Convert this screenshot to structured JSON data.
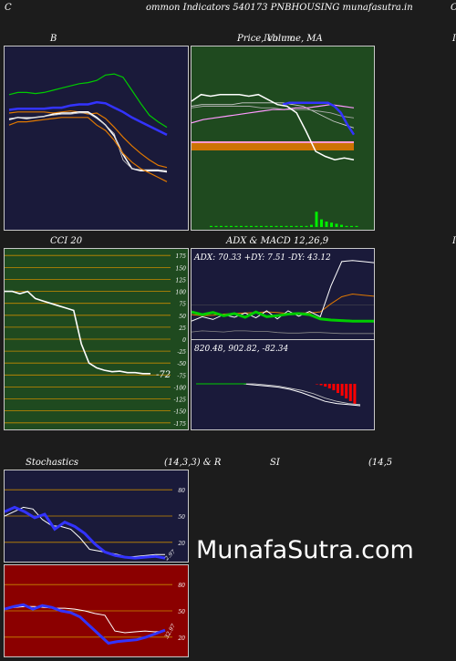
{
  "header": {
    "left": "C",
    "title": "ommon  Indicators 540173 PNBHOUSING munafasutra.in",
    "right": "C"
  },
  "labels": {
    "bb": "B",
    "price": "Price,  Volume,  MA",
    "price_overlay": "Ichimo",
    "right_edge_1": "I",
    "cci": "CCI 20",
    "adx_macd": "ADX  & MACD 12,26,9",
    "right_edge_2": "I",
    "stoch_left": "Stochastics",
    "stoch_params": "(14,3,3) & R",
    "rsi": "SI",
    "rsi_params": "(14,5"
  },
  "watermark": "MunafaSutra.com",
  "colors": {
    "navy": "#1a1a3a",
    "green_bg": "#1f4a1f",
    "red_bg": "#8b0000",
    "orange": "#e07800",
    "blue": "#3333ff",
    "white": "#ffffff",
    "lime": "#00cc00"
  },
  "chart_data": [
    {
      "type": "line",
      "title": "B",
      "series": [
        {
          "values": [
            120,
            122,
            122,
            121,
            122,
            124,
            126,
            128,
            130,
            131,
            133,
            138,
            139,
            136,
            124,
            112,
            101,
            95,
            90
          ]
        },
        {
          "values": [
            106,
            107,
            107,
            107,
            107,
            108,
            108,
            110,
            111,
            111,
            113,
            112,
            108,
            104,
            99,
            95,
            91,
            87,
            83
          ]
        },
        {
          "values": [
            103,
            104,
            104,
            104,
            104,
            103,
            104,
            105,
            104,
            102,
            103,
            98,
            90,
            81,
            73,
            66,
            60,
            55,
            53
          ]
        },
        {
          "values": [
            97,
            99,
            98,
            99,
            100,
            102,
            103,
            103,
            104,
            104,
            99,
            92,
            82,
            65,
            52,
            50,
            50,
            50,
            49
          ]
        },
        {
          "values": [
            98,
            99,
            99,
            99,
            100,
            101,
            102,
            102,
            103,
            103,
            98,
            92,
            84,
            60,
            52,
            51,
            51,
            51,
            50
          ]
        },
        {
          "values": [
            92,
            95,
            95,
            96,
            97,
            98,
            99,
            99,
            99,
            99,
            92,
            87,
            78,
            66,
            58,
            52,
            48,
            44,
            40
          ]
        }
      ]
    },
    {
      "type": "line",
      "title": "Price,  Volume,  MA",
      "series": [
        {
          "values": [
            100,
            104,
            103,
            104,
            104,
            104,
            103,
            104,
            101,
            98,
            97,
            93,
            82,
            70,
            67,
            65,
            66,
            65
          ]
        },
        {
          "values": [
            97,
            98,
            98,
            98,
            98,
            99,
            99,
            99,
            99,
            99,
            98,
            97,
            94,
            91,
            88,
            86,
            84
          ]
        },
        {
          "values": [
            96,
            97,
            97,
            97,
            97,
            97,
            96,
            96,
            95,
            95,
            95,
            94,
            93,
            91,
            90
          ]
        },
        {
          "values": [
            87,
            89,
            90,
            91,
            92,
            93,
            94,
            95,
            95,
            96,
            96,
            97,
            98,
            97,
            96
          ]
        }
      ],
      "volume": [
        1,
        1,
        1,
        1,
        1,
        1,
        1,
        1,
        1,
        1,
        1,
        1,
        1,
        1,
        1,
        1,
        1,
        1,
        1,
        1,
        2,
        14,
        7,
        5,
        4,
        3,
        2,
        1,
        1,
        1
      ]
    },
    {
      "type": "line",
      "title": "CCI 20",
      "yticks": [
        175,
        150,
        125,
        100,
        75,
        50,
        25,
        0,
        -25,
        -50,
        -75,
        -100,
        -125,
        -150,
        -175
      ],
      "ylim": [
        -185,
        185
      ],
      "series": [
        {
          "name": "CCI 20",
          "values": [
            100,
            100,
            95,
            100,
            85,
            80,
            75,
            70,
            65,
            60,
            -10,
            -50,
            -60,
            -65,
            -68,
            -67,
            -70,
            -70,
            -72,
            -72
          ]
        }
      ],
      "last_label": "-72"
    },
    {
      "type": "line",
      "title": "ADX  & MACD 12,26,9",
      "readout": "ADX: 70.33  +DY: 7.51  -DY: 43.12",
      "series": [
        {
          "values": [
            47,
            42,
            46,
            40,
            44,
            37,
            47,
            38,
            40,
            43,
            44,
            42,
            34,
            32,
            31,
            30,
            30,
            30
          ]
        },
        {
          "values": [
            42,
            40,
            41,
            43,
            44,
            45,
            46,
            47,
            46,
            44,
            45,
            45,
            47,
            62,
            75,
            80,
            78,
            76
          ]
        },
        {
          "values": [
            30,
            38,
            33,
            42,
            37,
            45,
            36,
            49,
            34,
            49,
            39,
            48,
            38,
            95,
            140,
            142,
            140,
            138
          ]
        },
        {
          "values": [
            10,
            12,
            11,
            10,
            12,
            12,
            11,
            11,
            9,
            8,
            8,
            9,
            9,
            8,
            7,
            7,
            7,
            7
          ]
        }
      ]
    },
    {
      "type": "bar",
      "title": "MACD",
      "readout": "820.48,  902.82,  -82.34",
      "histogram": [
        0,
        0,
        0,
        0,
        0,
        0,
        0,
        0,
        0,
        0,
        -1,
        -3,
        -6,
        -10,
        -14,
        -20,
        -26,
        -32,
        -38,
        -44
      ]
    },
    {
      "type": "line",
      "title": "Stochastics",
      "yticks": [
        80,
        50,
        20
      ],
      "ylim": [
        0,
        100
      ],
      "series": [
        {
          "values": [
            55,
            60,
            55,
            48,
            52,
            35,
            43,
            38,
            30,
            18,
            9,
            5,
            3,
            2,
            3,
            4,
            2
          ]
        },
        {
          "values": [
            50,
            55,
            60,
            58,
            46,
            39,
            38,
            35,
            25,
            12,
            10,
            8,
            6,
            3,
            4,
            5,
            6,
            6
          ]
        }
      ],
      "last_label": "2.97"
    },
    {
      "type": "line",
      "title": "SI",
      "yticks": [
        80,
        50,
        20
      ],
      "ylim": [
        0,
        100
      ],
      "series": [
        {
          "values": [
            53,
            54,
            55,
            55,
            54,
            53,
            53,
            52,
            50,
            47,
            45,
            27,
            25,
            26,
            27,
            26,
            27
          ]
        },
        {
          "values": [
            52,
            55,
            57,
            52,
            56,
            54,
            50,
            48,
            43,
            33,
            23,
            13,
            15,
            16,
            17,
            20,
            24,
            28
          ]
        }
      ],
      "last_label": "32.97"
    }
  ]
}
